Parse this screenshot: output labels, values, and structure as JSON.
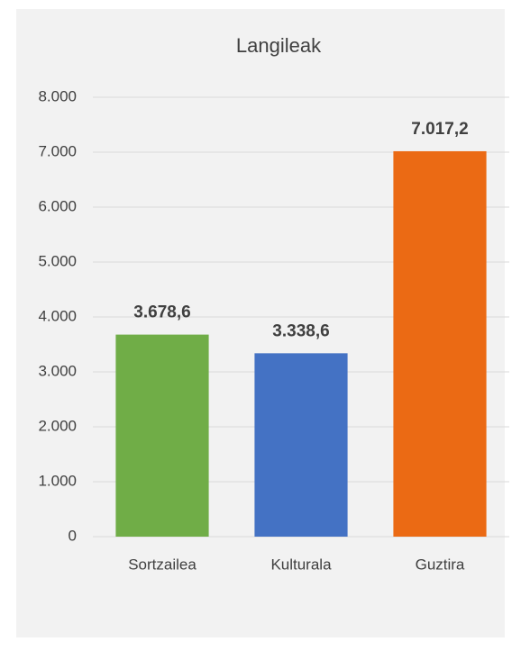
{
  "chart_data": {
    "type": "bar",
    "title": "Langileak",
    "categories": [
      "Sortzailea",
      "Kulturala",
      "Guztira"
    ],
    "values": [
      3678.6,
      3338.6,
      7017.2
    ],
    "value_labels": [
      "3.678,6",
      "3.338,6",
      "7.017,2"
    ],
    "colors": [
      "#70ad47",
      "#4472c4",
      "#eb6a14"
    ],
    "ylim": [
      0,
      8000
    ],
    "yticks": [
      0,
      {
        "value": 1000,
        "label": "1.000"
      },
      {
        "value": 2000,
        "label": "2.000"
      },
      {
        "value": 3000,
        "label": "3.000"
      },
      {
        "value": 4000,
        "label": "4.000"
      },
      {
        "value": 5000,
        "label": "5.000"
      },
      {
        "value": 6000,
        "label": "6.000"
      },
      {
        "value": 7000,
        "label": "7.000"
      },
      {
        "value": 8000,
        "label": "8.000"
      }
    ],
    "grid": true
  }
}
